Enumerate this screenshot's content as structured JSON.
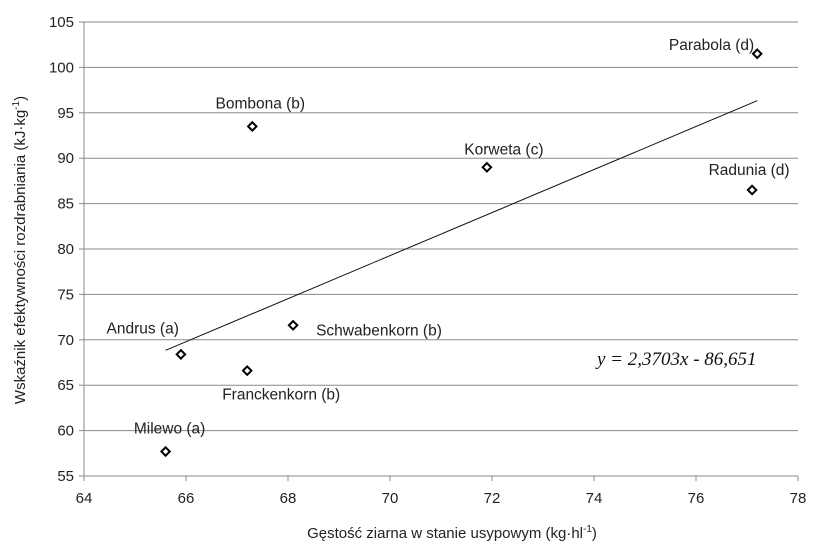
{
  "chart_data": {
    "type": "scatter",
    "xlabel_main": "Gęstość ziarna w stanie usypowym (kg·hl",
    "xlabel_sup": "-1",
    "xlabel_end": ")",
    "ylabel_main": "Wskaźnik efektywności rozdrabniania (kJ·kg",
    "ylabel_sup": "-1",
    "ylabel_end": ")",
    "xlim": [
      64,
      78
    ],
    "ylim": [
      55,
      105
    ],
    "xticks": [
      64,
      66,
      68,
      70,
      72,
      74,
      76,
      78
    ],
    "yticks": [
      55,
      60,
      65,
      70,
      75,
      80,
      85,
      90,
      95,
      100,
      105
    ],
    "grid": "horizontal",
    "points": [
      {
        "label": "Parabola (d)",
        "x": 77.2,
        "y": 101.5
      },
      {
        "label": "Bombona (b)",
        "x": 67.3,
        "y": 93.5
      },
      {
        "label": "Korweta (c)",
        "x": 71.9,
        "y": 89.0
      },
      {
        "label": "Radunia (d)",
        "x": 77.1,
        "y": 86.5
      },
      {
        "label": "Schwabenkorn (b)",
        "x": 68.1,
        "y": 71.6
      },
      {
        "label": "Andrus (a)",
        "x": 65.9,
        "y": 68.4
      },
      {
        "label": "Franckenkorn (b)",
        "x": 67.2,
        "y": 66.6
      },
      {
        "label": "Milewo (a)",
        "x": 65.6,
        "y": 57.7
      }
    ],
    "trendline": {
      "equation": "y = 2,3703x - 86,651",
      "slope": 2.3703,
      "intercept": -86.651,
      "x_range": [
        65.6,
        77.2
      ]
    }
  }
}
